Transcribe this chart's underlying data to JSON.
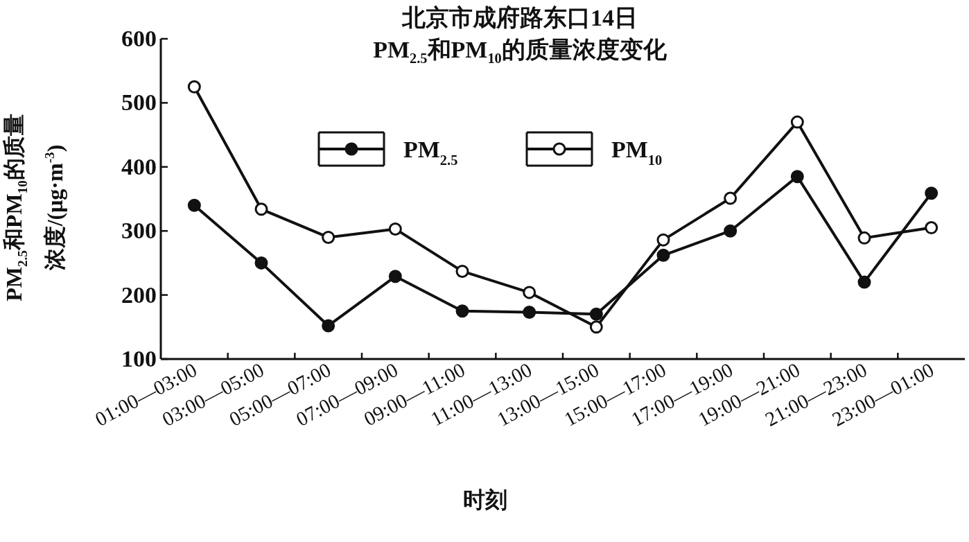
{
  "chart_data": {
    "type": "line",
    "title": "北京市成府路东口14日",
    "subtitle": "PM$_{2.5}$和PM$_{10}$的质量浓度变化",
    "xlabel": "时刻",
    "ylabel": "PM$_{2.5}$和PM$_{10}$的质量浓度/(μg·m$^{-3}$)",
    "categories": [
      "01:00—03:00",
      "03:00—05:00",
      "05:00—07:00",
      "07:00—09:00",
      "09:00—11:00",
      "11:00—13:00",
      "13:00—15:00",
      "15:00—17:00",
      "17:00—19:00",
      "19:00—21:00",
      "21:00—23:00",
      "23:00—01:00"
    ],
    "series": [
      {
        "name": "PM$_{2.5}$",
        "color": "#111111",
        "marker": "circle",
        "values": [
          340,
          250,
          152,
          229,
          175,
          173,
          170,
          262,
          300,
          385,
          220,
          359
        ]
      },
      {
        "name": "PM$_{10}$",
        "color": "#111111",
        "marker": "circle",
        "values": [
          525,
          334,
          290,
          303,
          237,
          204,
          150,
          286,
          351,
          470,
          289,
          305
        ]
      }
    ],
    "ylim": [
      100,
      600
    ],
    "yticks": [
      100,
      200,
      300,
      400,
      500,
      600
    ],
    "legend": "top",
    "grid": false,
    "line_style": "solid"
  }
}
